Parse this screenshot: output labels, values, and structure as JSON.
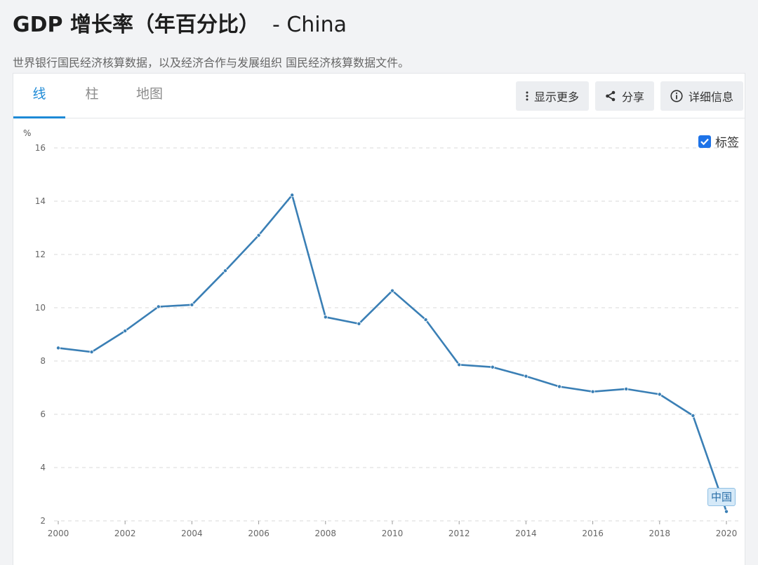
{
  "header": {
    "title": "GDP 增长率（年百分比）",
    "title_suffix": "- China",
    "source": "世界银行国民经济核算数据，以及经济合作与发展组织 国民经济核算数据文件。"
  },
  "tabs": [
    {
      "label": "线",
      "active": true
    },
    {
      "label": "柱",
      "active": false
    },
    {
      "label": "地图",
      "active": false
    }
  ],
  "actions": {
    "more": "显示更多",
    "share": "分享",
    "details": "详细信息"
  },
  "labels_toggle": {
    "label": "标签",
    "checked": true
  },
  "series_flag": "中国",
  "colors": {
    "accent": "#1e8ad6",
    "line": "#3a7fb5",
    "checkbox": "#1e73e8"
  },
  "chart_data": {
    "type": "line",
    "ylabel": "%",
    "xlabel": "",
    "ylim": [
      2,
      16
    ],
    "yticks": [
      2,
      4,
      6,
      8,
      10,
      12,
      14,
      16
    ],
    "xlim": [
      2000,
      2020
    ],
    "xticks": [
      2000,
      2002,
      2004,
      2006,
      2008,
      2010,
      2012,
      2014,
      2016,
      2018,
      2020
    ],
    "grid": true,
    "series": [
      {
        "name": "中国",
        "x": [
          2000,
          2001,
          2002,
          2003,
          2004,
          2005,
          2006,
          2007,
          2008,
          2009,
          2010,
          2011,
          2012,
          2013,
          2014,
          2015,
          2016,
          2017,
          2018,
          2019,
          2020
        ],
        "values": [
          8.49,
          8.34,
          9.13,
          10.04,
          10.11,
          11.39,
          12.72,
          14.23,
          9.65,
          9.4,
          10.64,
          9.55,
          7.86,
          7.77,
          7.43,
          7.04,
          6.85,
          6.95,
          6.75,
          5.95,
          2.35
        ]
      }
    ]
  }
}
